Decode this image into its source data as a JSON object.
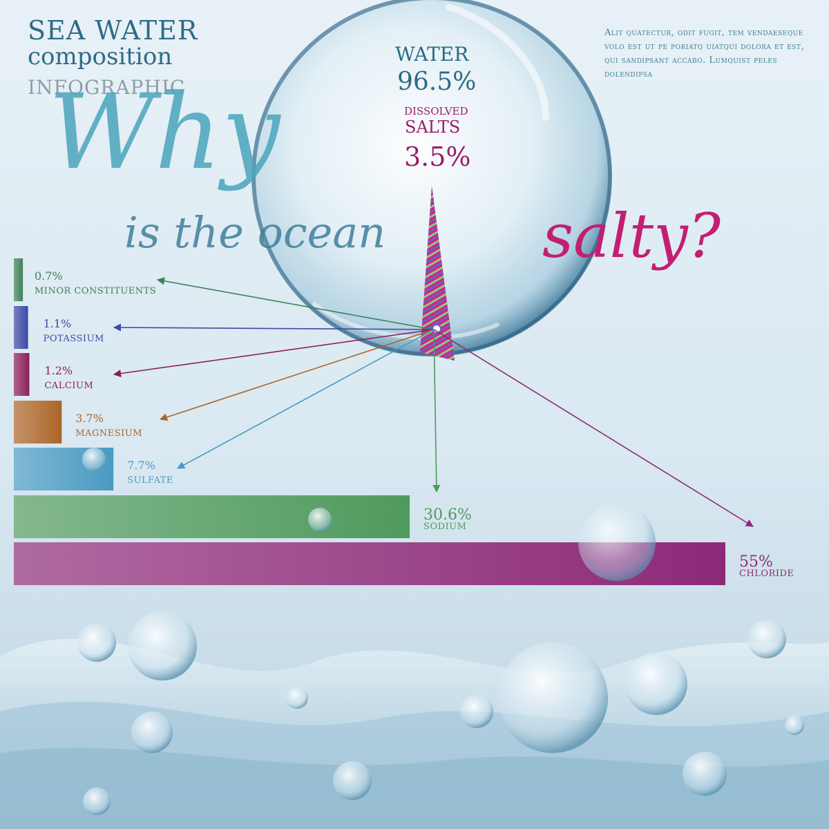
{
  "title": {
    "line1": "SEA WATER",
    "line2": "composition",
    "line3": "INFOGRAPHIC"
  },
  "headline": {
    "why": "Why",
    "is_the_ocean": "is the ocean",
    "salty": "salty?"
  },
  "blurb": "Alit quatectur, odit fugit, tem vendaeseque volo est ut pe poriatq uiatqui dolora et est, qui sandipsant accabo. Lumquist peles dolendipsa",
  "bubble": {
    "water_label": "WATER",
    "water_value": "96.5%",
    "dissolved_label": "DISSOLVED",
    "salts_label": "SALTS",
    "salts_value": "3.5%"
  },
  "colors": {
    "accent_blue": "#2f6b87",
    "accent_magenta": "#c21f72"
  },
  "chart_data": {
    "type": "bar",
    "orientation": "horizontal",
    "categories": [
      "MINOR CONSTITUENTS",
      "POTASSIUM",
      "CALCIUM",
      "MAGNESIUM",
      "SULFATE",
      "SODIUM",
      "CHLORIDE"
    ],
    "values": [
      0.7,
      1.1,
      1.2,
      3.7,
      7.7,
      30.6,
      55
    ],
    "value_labels": [
      "0.7%",
      "1.1%",
      "1.2%",
      "3.7%",
      "7.7%",
      "30.6%",
      "55%"
    ],
    "colors": [
      "#3f8058",
      "#3c4aa6",
      "#8c1f5c",
      "#ac6528",
      "#4a9ac2",
      "#4f9a5e",
      "#8d2a78"
    ],
    "xlim": [
      0,
      55
    ],
    "title": "",
    "xlabel": "",
    "ylabel": "",
    "grid": false
  }
}
